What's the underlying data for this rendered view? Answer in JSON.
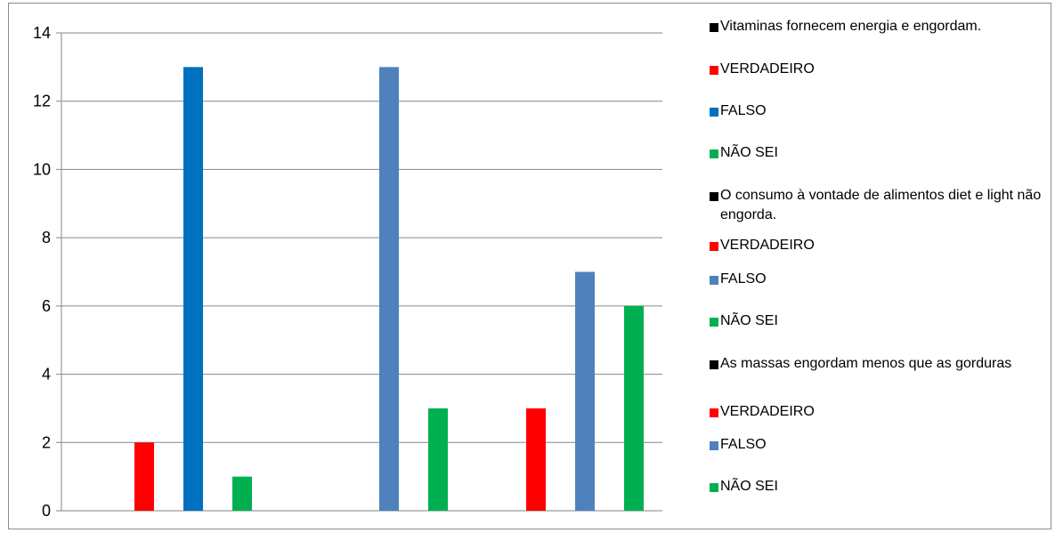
{
  "chart_data": {
    "type": "bar",
    "ylim": [
      0,
      14
    ],
    "yticks": [
      0,
      2,
      4,
      6,
      8,
      10,
      12,
      14
    ],
    "grid": true,
    "legend_position": "right",
    "groups": [
      {
        "name": "Vitaminas fornecem energia e engordam.",
        "bars": [
          {
            "label": "VERDADEIRO",
            "value": 2,
            "color": "#ff0000"
          },
          {
            "label": "FALSO",
            "value": 13,
            "color": "#0070c0"
          },
          {
            "label": "NÃO SEI",
            "value": 1,
            "color": "#00b050"
          }
        ]
      },
      {
        "name": "O consumo à vontade de alimentos diet e light não engorda.",
        "bars": [
          {
            "label": "VERDADEIRO",
            "value": 0,
            "color": "#ff0000"
          },
          {
            "label": "FALSO",
            "value": 13,
            "color": "#4f81bd"
          },
          {
            "label": "NÃO SEI",
            "value": 3,
            "color": "#00b050"
          }
        ]
      },
      {
        "name": "As massas engordam menos que as gorduras",
        "bars": [
          {
            "label": "VERDADEIRO",
            "value": 3,
            "color": "#ff0000"
          },
          {
            "label": "FALSO",
            "value": 7,
            "color": "#4f81bd"
          },
          {
            "label": "NÃO SEI",
            "value": 6,
            "color": "#00b050"
          }
        ]
      }
    ],
    "legend": [
      {
        "text": "Vitaminas fornecem energia e engordam.",
        "color": "#000000"
      },
      {
        "text": "VERDADEIRO",
        "color": "#ff0000"
      },
      {
        "text": "FALSO",
        "color": "#0070c0"
      },
      {
        "text": "NÃO SEI",
        "color": "#00b050"
      },
      {
        "text": "O consumo à vontade de alimentos diet e light não engorda.",
        "color": "#000000"
      },
      {
        "text": "VERDADEIRO",
        "color": "#ff0000"
      },
      {
        "text": "FALSO",
        "color": "#4f81bd"
      },
      {
        "text": "NÃO SEI",
        "color": "#00b050"
      },
      {
        "text": "As massas engordam menos que as gorduras",
        "color": "#000000"
      },
      {
        "text": "VERDADEIRO",
        "color": "#ff0000"
      },
      {
        "text": "FALSO",
        "color": "#4f81bd"
      },
      {
        "text": "NÃO SEI",
        "color": "#00b050"
      }
    ]
  }
}
